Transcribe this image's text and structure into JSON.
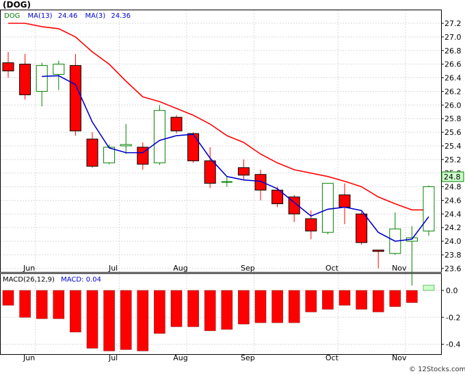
{
  "title": "(DOG)",
  "legend": [
    {
      "label": "DOG",
      "color": "#008000"
    },
    {
      "label": "MA(13)",
      "color": "#0000cc"
    },
    {
      "value": "24.46",
      "color": "#0000cc"
    },
    {
      "label": "MA(3)",
      "color": "#0000cc"
    },
    {
      "value": "24.36",
      "color": "#0000cc"
    }
  ],
  "last_price_label": "24.8",
  "macd_legend": [
    {
      "label": "MACD(26,12,9)",
      "color": "#000000"
    },
    {
      "label": "MACD:",
      "value": "0.04",
      "color": "#0000cc"
    }
  ],
  "watermark": "© 12Stocks.com",
  "colors": {
    "up": "#008000",
    "down": "#ff0000",
    "ma13": "#ff0000",
    "ma3": "#0000cc",
    "grid": "#d9d9d9"
  },
  "chart_data": [
    {
      "type": "candlestick",
      "ylim": [
        23.3,
        27.3
      ],
      "yticks": [
        23.6,
        23.8,
        24.0,
        24.2,
        24.4,
        24.6,
        24.8,
        25.0,
        25.2,
        25.4,
        25.6,
        25.8,
        26.0,
        26.2,
        26.4,
        26.6,
        26.8,
        27.0,
        27.2
      ],
      "month_labels": [
        {
          "label": "Jun",
          "index": 1
        },
        {
          "label": "Jul",
          "index": 6
        },
        {
          "label": "Aug",
          "index": 10
        },
        {
          "label": "Sep",
          "index": 14
        },
        {
          "label": "Oct",
          "index": 19
        },
        {
          "label": "Nov",
          "index": 23
        }
      ],
      "candles": [
        {
          "o": 26.62,
          "h": 26.78,
          "l": 26.4,
          "c": 26.5
        },
        {
          "o": 26.6,
          "h": 26.75,
          "l": 26.08,
          "c": 26.15
        },
        {
          "o": 26.2,
          "h": 26.62,
          "l": 25.98,
          "c": 26.58
        },
        {
          "o": 26.45,
          "h": 26.65,
          "l": 26.22,
          "c": 26.6
        },
        {
          "o": 26.58,
          "h": 26.75,
          "l": 25.55,
          "c": 25.62
        },
        {
          "o": 25.5,
          "h": 25.6,
          "l": 25.08,
          "c": 25.1
        },
        {
          "o": 25.15,
          "h": 25.42,
          "l": 25.13,
          "c": 25.38
        },
        {
          "o": 25.4,
          "h": 25.72,
          "l": 25.28,
          "c": 25.42
        },
        {
          "o": 25.38,
          "h": 25.45,
          "l": 25.05,
          "c": 25.13
        },
        {
          "o": 25.15,
          "h": 26.0,
          "l": 25.12,
          "c": 25.92
        },
        {
          "o": 25.82,
          "h": 25.85,
          "l": 25.58,
          "c": 25.62
        },
        {
          "o": 25.58,
          "h": 25.6,
          "l": 25.15,
          "c": 25.18
        },
        {
          "o": 25.18,
          "h": 25.38,
          "l": 24.78,
          "c": 24.85
        },
        {
          "o": 24.87,
          "h": 24.95,
          "l": 24.8,
          "c": 24.87
        },
        {
          "o": 25.08,
          "h": 25.2,
          "l": 24.9,
          "c": 24.97
        },
        {
          "o": 24.98,
          "h": 25.05,
          "l": 24.6,
          "c": 24.75
        },
        {
          "o": 24.75,
          "h": 24.8,
          "l": 24.5,
          "c": 24.55
        },
        {
          "o": 24.65,
          "h": 24.68,
          "l": 24.28,
          "c": 24.4
        },
        {
          "o": 24.33,
          "h": 24.45,
          "l": 24.03,
          "c": 24.15
        },
        {
          "o": 24.13,
          "h": 24.85,
          "l": 24.1,
          "c": 24.85
        },
        {
          "o": 24.68,
          "h": 24.85,
          "l": 24.25,
          "c": 24.5
        },
        {
          "o": 24.4,
          "h": 24.43,
          "l": 23.95,
          "c": 23.98
        },
        {
          "o": 23.87,
          "h": 23.87,
          "l": 23.6,
          "c": 23.85
        },
        {
          "o": 23.82,
          "h": 24.42,
          "l": 23.8,
          "c": 24.18
        },
        {
          "o": 24.0,
          "h": 24.22,
          "l": 23.35,
          "c": 24.05
        },
        {
          "o": 24.15,
          "h": 24.82,
          "l": 24.08,
          "c": 24.8
        }
      ],
      "ma13": [
        27.2,
        27.2,
        27.15,
        27.12,
        27.0,
        26.78,
        26.6,
        26.35,
        26.12,
        26.05,
        25.95,
        25.85,
        25.72,
        25.55,
        25.45,
        25.28,
        25.15,
        25.05,
        25.0,
        24.95,
        24.88,
        24.8,
        24.65,
        24.55,
        24.46,
        24.46
      ],
      "ma3": [
        null,
        null,
        26.42,
        26.43,
        26.3,
        25.75,
        25.37,
        25.3,
        25.3,
        25.48,
        25.55,
        25.57,
        25.22,
        24.95,
        24.9,
        24.88,
        24.77,
        24.57,
        24.37,
        24.47,
        24.5,
        24.45,
        24.13,
        24.0,
        24.03,
        24.36
      ]
    },
    {
      "type": "bar",
      "name": "MACD(26,12,9)",
      "ylim": [
        -0.45,
        0.06
      ],
      "yticks": [
        0.0,
        -0.2,
        -0.4
      ],
      "values": [
        -0.11,
        -0.2,
        -0.21,
        -0.21,
        -0.31,
        -0.43,
        -0.45,
        -0.44,
        -0.45,
        -0.32,
        -0.27,
        -0.27,
        -0.3,
        -0.29,
        -0.25,
        -0.24,
        -0.24,
        -0.24,
        -0.16,
        -0.14,
        -0.11,
        -0.14,
        -0.16,
        -0.12,
        -0.09,
        0.04
      ]
    }
  ]
}
